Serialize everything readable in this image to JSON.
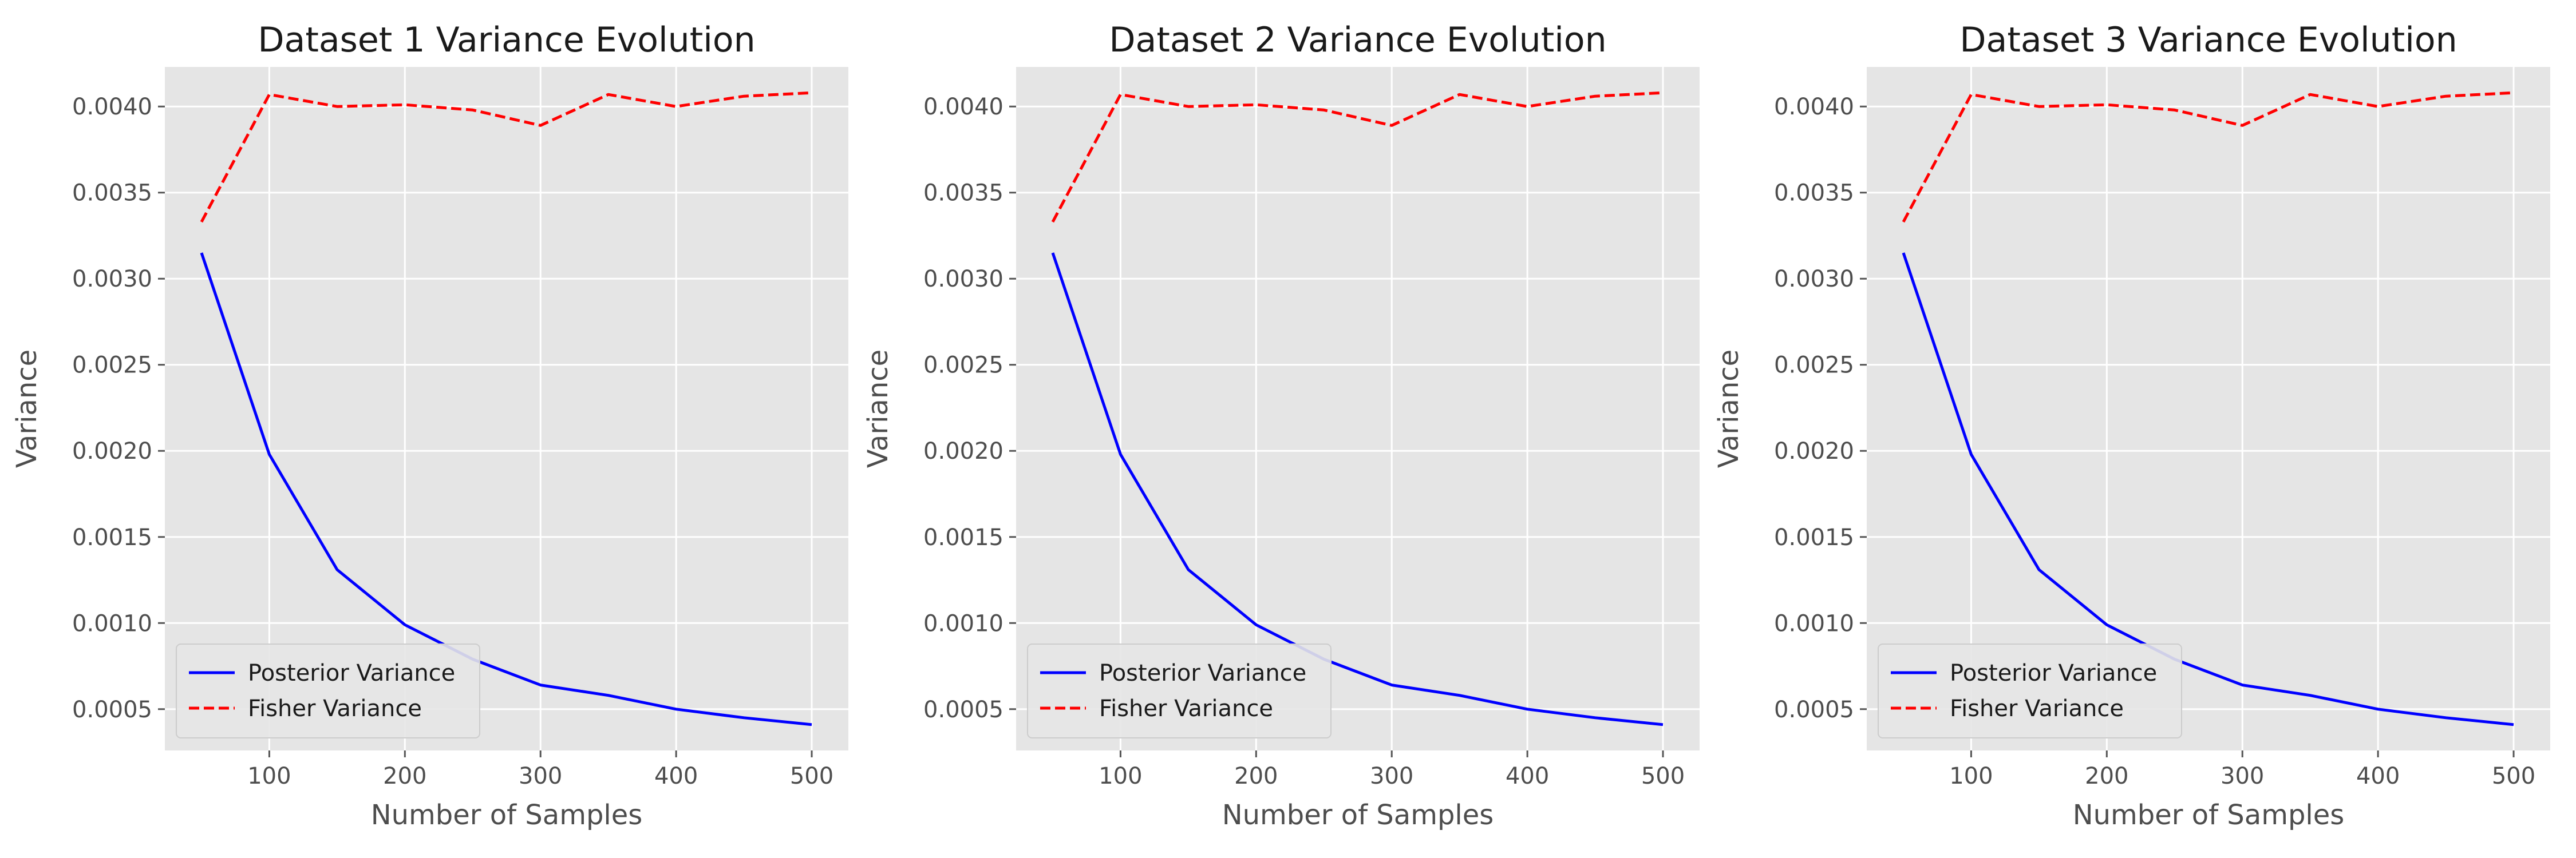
{
  "chart_data": [
    {
      "type": "line",
      "title": "Dataset 1 Variance Evolution",
      "xlabel": "Number of Samples",
      "ylabel": "Variance",
      "x": [
        50,
        100,
        150,
        200,
        250,
        300,
        350,
        400,
        450,
        500
      ],
      "xlim": [
        23,
        527
      ],
      "ylim": [
        0.00026,
        0.00423
      ],
      "xticks": [
        100,
        200,
        300,
        400,
        500
      ],
      "xtick_labels": [
        "100",
        "200",
        "300",
        "400",
        "500"
      ],
      "yticks": [
        0.0005,
        0.001,
        0.0015,
        0.002,
        0.0025,
        0.003,
        0.0035,
        0.004
      ],
      "ytick_labels": [
        "0.0005",
        "0.0010",
        "0.0015",
        "0.0020",
        "0.0025",
        "0.0030",
        "0.0035",
        "0.0040"
      ],
      "grid": true,
      "legend_position": "lower-left",
      "series": [
        {
          "name": "Posterior Variance",
          "color": "#0000ff",
          "style": "solid",
          "values": [
            0.00315,
            0.00198,
            0.00131,
            0.00099,
            0.00079,
            0.00064,
            0.00058,
            0.0005,
            0.00045,
            0.00041
          ]
        },
        {
          "name": "Fisher Variance",
          "color": "#ff0000",
          "style": "dashed",
          "values": [
            0.00333,
            0.00407,
            0.004,
            0.00401,
            0.00398,
            0.00389,
            0.00407,
            0.004,
            0.00406,
            0.00408
          ]
        }
      ]
    },
    {
      "type": "line",
      "title": "Dataset 2 Variance Evolution",
      "xlabel": "Number of Samples",
      "ylabel": "Variance",
      "x": [
        50,
        100,
        150,
        200,
        250,
        300,
        350,
        400,
        450,
        500
      ],
      "xlim": [
        23,
        527
      ],
      "ylim": [
        0.00026,
        0.00423
      ],
      "xticks": [
        100,
        200,
        300,
        400,
        500
      ],
      "xtick_labels": [
        "100",
        "200",
        "300",
        "400",
        "500"
      ],
      "yticks": [
        0.0005,
        0.001,
        0.0015,
        0.002,
        0.0025,
        0.003,
        0.0035,
        0.004
      ],
      "ytick_labels": [
        "0.0005",
        "0.0010",
        "0.0015",
        "0.0020",
        "0.0025",
        "0.0030",
        "0.0035",
        "0.0040"
      ],
      "grid": true,
      "legend_position": "lower-left",
      "series": [
        {
          "name": "Posterior Variance",
          "color": "#0000ff",
          "style": "solid",
          "values": [
            0.00315,
            0.00198,
            0.00131,
            0.00099,
            0.00079,
            0.00064,
            0.00058,
            0.0005,
            0.00045,
            0.00041
          ]
        },
        {
          "name": "Fisher Variance",
          "color": "#ff0000",
          "style": "dashed",
          "values": [
            0.00333,
            0.00407,
            0.004,
            0.00401,
            0.00398,
            0.00389,
            0.00407,
            0.004,
            0.00406,
            0.00408
          ]
        }
      ]
    },
    {
      "type": "line",
      "title": "Dataset 3 Variance Evolution",
      "xlabel": "Number of Samples",
      "ylabel": "Variance",
      "x": [
        50,
        100,
        150,
        200,
        250,
        300,
        350,
        400,
        450,
        500
      ],
      "xlim": [
        23,
        527
      ],
      "ylim": [
        0.00026,
        0.00423
      ],
      "xticks": [
        100,
        200,
        300,
        400,
        500
      ],
      "xtick_labels": [
        "100",
        "200",
        "300",
        "400",
        "500"
      ],
      "yticks": [
        0.0005,
        0.001,
        0.0015,
        0.002,
        0.0025,
        0.003,
        0.0035,
        0.004
      ],
      "ytick_labels": [
        "0.0005",
        "0.0010",
        "0.0015",
        "0.0020",
        "0.0025",
        "0.0030",
        "0.0035",
        "0.0040"
      ],
      "grid": true,
      "legend_position": "lower-left",
      "series": [
        {
          "name": "Posterior Variance",
          "color": "#0000ff",
          "style": "solid",
          "values": [
            0.00315,
            0.00198,
            0.00131,
            0.00099,
            0.00079,
            0.00064,
            0.00058,
            0.0005,
            0.00045,
            0.00041
          ]
        },
        {
          "name": "Fisher Variance",
          "color": "#ff0000",
          "style": "dashed",
          "values": [
            0.00333,
            0.00407,
            0.004,
            0.00401,
            0.00398,
            0.00389,
            0.00407,
            0.004,
            0.00406,
            0.00408
          ]
        }
      ]
    }
  ]
}
